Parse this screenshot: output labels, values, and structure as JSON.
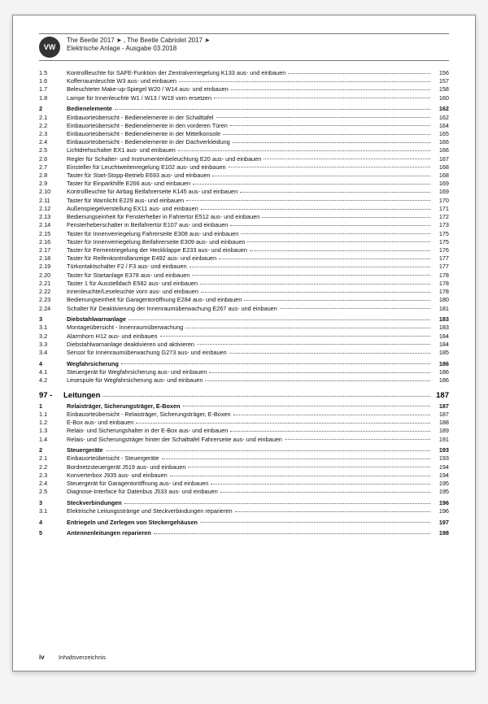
{
  "header": {
    "logo": "VW",
    "line1": "The Beetle 2017 ➤ , The Beetle Cabriolet 2017 ➤",
    "line2": "Elektrische Anlage - Ausgabe 03.2018"
  },
  "footer": {
    "page": "iv",
    "label": "Inhaltsverzeichnis"
  },
  "section97": {
    "num": "97 -",
    "title": "Leitungen",
    "page": "187"
  },
  "toc": [
    {
      "n": "1.5",
      "t": "Kontrollleuchte für SAFE-Funktion der Zentralverriegelung K133 aus- und einbauen",
      "p": "156",
      "b": false
    },
    {
      "n": "1.6",
      "t": "Kofferraumleuchte W3 aus- und einbauen",
      "p": "157",
      "b": false
    },
    {
      "n": "1.7",
      "t": "Beleuchteter Make-up-Spiegel W20 / W14 aus- und einbauen",
      "p": "158",
      "b": false
    },
    {
      "n": "1.8",
      "t": "Lampe für Innenleuchte W1 / W13 / W19 vorn ersetzen",
      "p": "160",
      "b": false
    },
    {
      "n": "2",
      "t": "Bedienelemente",
      "p": "162",
      "b": true,
      "sp": true
    },
    {
      "n": "2.1",
      "t": "Einbauorteübersicht - Bedienelemente in der Schalttafel",
      "p": "162",
      "b": false
    },
    {
      "n": "2.2",
      "t": "Einbauorteübersicht - Bedienelemente in den vorderen Türen",
      "p": "164",
      "b": false
    },
    {
      "n": "2.3",
      "t": "Einbauorteübersicht - Bedienelemente in der Mittelkonsole",
      "p": "165",
      "b": false
    },
    {
      "n": "2.4",
      "t": "Einbauorteübersicht - Bedienelemente in der Dachverkleidung",
      "p": "166",
      "b": false
    },
    {
      "n": "2.5",
      "t": "Lichtdrehschalter EX1 aus- und einbauen",
      "p": "166",
      "b": false
    },
    {
      "n": "2.6",
      "t": "Regler für Schalter- und Instrumentenbeleuchtung E20 aus- und einbauen",
      "p": "167",
      "b": false
    },
    {
      "n": "2.7",
      "t": "Einsteller für Leuchtweitenregelung E102 aus- und einbauen",
      "p": "168",
      "b": false
    },
    {
      "n": "2.8",
      "t": "Taster für Start-Stopp-Betrieb E693 aus- und einbauen",
      "p": "168",
      "b": false
    },
    {
      "n": "2.9",
      "t": "Taster für Einparkhilfe E266 aus- und einbauen",
      "p": "169",
      "b": false
    },
    {
      "n": "2.10",
      "t": "Kontrollleuchte für Airbag Beifahrerseite K145 aus- und einbauen",
      "p": "169",
      "b": false
    },
    {
      "n": "2.11",
      "t": "Taster für Warnlicht E229 aus- und einbauen",
      "p": "170",
      "b": false
    },
    {
      "n": "2.12",
      "t": "Außenspiegelverstellung EX11 aus- und einbauen",
      "p": "171",
      "b": false
    },
    {
      "n": "2.13",
      "t": "Bedienungseinheit für Fensterheber in Fahrertür E512 aus- und einbauen",
      "p": "172",
      "b": false
    },
    {
      "n": "2.14",
      "t": "Fensterheberschalter in Beifahrertür E107 aus- und einbauen",
      "p": "173",
      "b": false
    },
    {
      "n": "2.15",
      "t": "Taster für Innenverriegelung Fahrerseite E308 aus- und einbauen",
      "p": "175",
      "b": false
    },
    {
      "n": "2.16",
      "t": "Taster für Innenverriegelung Beifahrerseite E309 aus- und einbauen",
      "p": "175",
      "b": false
    },
    {
      "n": "2.17",
      "t": "Taster für Fernentriegelung der Heckklappe E233 aus- und einbauen",
      "p": "176",
      "b": false
    },
    {
      "n": "2.18",
      "t": "Taster für Reifenkontrollanzeige E492 aus- und einbauen",
      "p": "177",
      "b": false
    },
    {
      "n": "2.19",
      "t": "Türkontaktschalter F2 / F3 aus- und einbauen",
      "p": "177",
      "b": false
    },
    {
      "n": "2.20",
      "t": "Taster für Startanlage E378 aus- und einbauen",
      "p": "178",
      "b": false
    },
    {
      "n": "2.21",
      "t": "Taster 1 für Ausstelldach E582 aus- und einbauen",
      "p": "178",
      "b": false
    },
    {
      "n": "2.22",
      "t": "Innenleuchte/Leseleuchte vorn aus- und einbauen",
      "p": "178",
      "b": false
    },
    {
      "n": "2.23",
      "t": "Bedienungseinheit für Garagentoröffnung E284 aus- und einbauen",
      "p": "180",
      "b": false
    },
    {
      "n": "2.24",
      "t": "Schalter für Deaktivierung der Innenraumüberwachung E267 aus- und einbauen",
      "p": "181",
      "b": false
    },
    {
      "n": "3",
      "t": "Diebstahlwarnanlage",
      "p": "183",
      "b": true,
      "sp": true
    },
    {
      "n": "3.1",
      "t": "Montageübersicht - Innenraumüberwachung",
      "p": "183",
      "b": false
    },
    {
      "n": "3.2",
      "t": "Alarmhorn H12 aus- und einbauen",
      "p": "184",
      "b": false
    },
    {
      "n": "3.3",
      "t": "Diebstahlwarnanlage deaktivieren und aktivieren",
      "p": "184",
      "b": false
    },
    {
      "n": "3.4",
      "t": "Sensor für Innenraumüberwachung G273 aus- und einbauen",
      "p": "185",
      "b": false
    },
    {
      "n": "4",
      "t": "Wegfahrsicherung",
      "p": "186",
      "b": true,
      "sp": true
    },
    {
      "n": "4.1",
      "t": "Steuergerät für Wegfahrsicherung aus- und einbauen",
      "p": "186",
      "b": false
    },
    {
      "n": "4.2",
      "t": "Lesespule für Wegfahrsicherung aus- und einbauen",
      "p": "186",
      "b": false
    }
  ],
  "toc2": [
    {
      "n": "1",
      "t": "Relaisträger, Sicherungsträger, E-Boxen",
      "p": "187",
      "b": true
    },
    {
      "n": "1.1",
      "t": "Einbauorteübersicht - Relaisträger, Sicherungsträger, E-Boxen",
      "p": "187",
      "b": false
    },
    {
      "n": "1.2",
      "t": "E-Box aus- und einbauen",
      "p": "188",
      "b": false
    },
    {
      "n": "1.3",
      "t": "Relais- und Sicherungshalter in der E-Box aus- und einbauen",
      "p": "189",
      "b": false
    },
    {
      "n": "1.4",
      "t": "Relais- und Sicherungsträger hinter der Schalttafel Fahrerseite aus- und einbauen",
      "p": "191",
      "b": false
    },
    {
      "n": "2",
      "t": "Steuergeräte",
      "p": "193",
      "b": true,
      "sp": true
    },
    {
      "n": "2.1",
      "t": "Einbauorteübersicht - Steuergeräte",
      "p": "193",
      "b": false
    },
    {
      "n": "2.2",
      "t": "Bordnetzsteuergerät J519 aus- und einbauen",
      "p": "194",
      "b": false
    },
    {
      "n": "2.3",
      "t": "Konverterbox J935 aus- und einbauen",
      "p": "194",
      "b": false
    },
    {
      "n": "2.4",
      "t": "Steuergerät für Garagentoröffnung aus- und einbauen",
      "p": "195",
      "b": false
    },
    {
      "n": "2.5",
      "t": "Diagnose-Interface für Datenbus J533 aus- und einbauen",
      "p": "195",
      "b": false
    },
    {
      "n": "3",
      "t": "Steckverbindungen",
      "p": "196",
      "b": true,
      "sp": true
    },
    {
      "n": "3.1",
      "t": "Elektrische Leitungsstränge und Steckverbindungen reparieren",
      "p": "196",
      "b": false
    },
    {
      "n": "4",
      "t": "Entriegeln und Zerlegen von Steckergehäusen",
      "p": "197",
      "b": true,
      "sp": true
    },
    {
      "n": "5",
      "t": "Antennenleitungen reparieren",
      "p": "198",
      "b": true,
      "sp": true
    }
  ]
}
